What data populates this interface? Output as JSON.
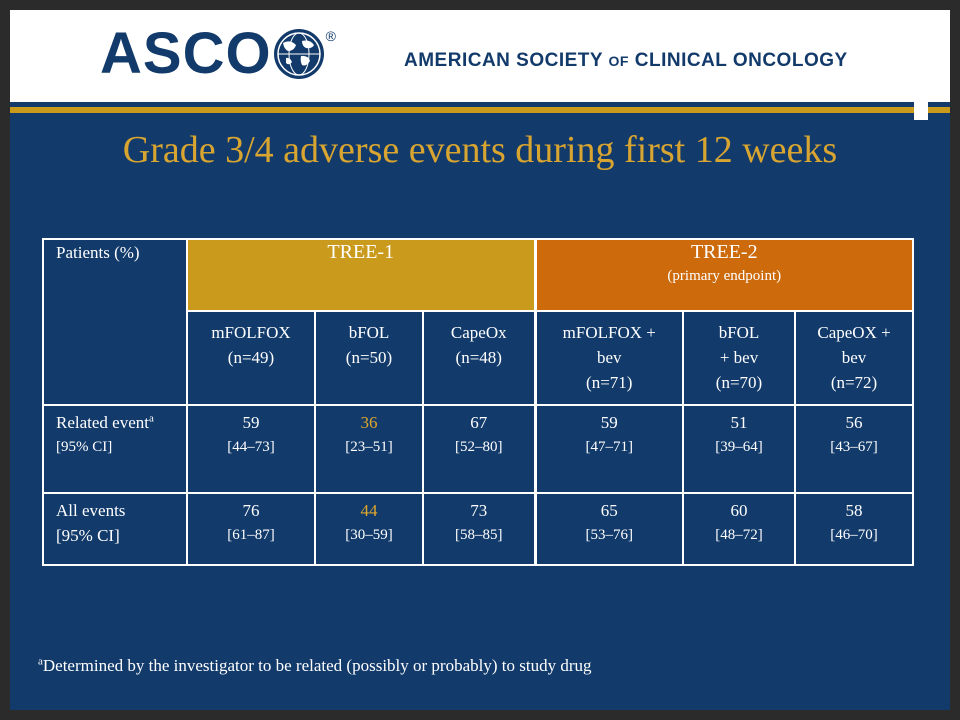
{
  "header": {
    "logo_text": "ASCO",
    "registered_mark": "®",
    "org_name_part1": "AMERICAN SOCIETY",
    "org_name_of": "OF",
    "org_name_part2": "CLINICAL ONCOLOGY"
  },
  "colors": {
    "background": "#123a6a",
    "title": "#d9a531",
    "tree1": "#c99a1c",
    "tree2": "#cc6a0c",
    "highlight": "#e0a82c"
  },
  "title": "Grade 3/4 adverse events during first 12 weeks",
  "table": {
    "corner": "Patients (%)",
    "tree1": {
      "label": "TREE-1"
    },
    "tree2": {
      "label": "TREE-2",
      "sub": "(primary endpoint)"
    },
    "arms": [
      {
        "name": "mFOLFOX",
        "n": "(n=49)"
      },
      {
        "name": "bFOL",
        "n": "(n=50)"
      },
      {
        "name": "CapeOx",
        "n": "(n=48)"
      },
      {
        "name": "mFOLFOX + bev",
        "n": "(n=71)"
      },
      {
        "name": "bFOL + bev",
        "n": "(n=70)"
      },
      {
        "name": "CapeOX + bev",
        "n": "(n=72)"
      }
    ],
    "rows": [
      {
        "label1": "Related event",
        "label_sup": "a",
        "label2": "[95% CI]",
        "cells": [
          {
            "value": "59",
            "ci": "[44–73]"
          },
          {
            "value": "36",
            "ci": "[23–51]"
          },
          {
            "value": "67",
            "ci": "[52–80]"
          },
          {
            "value": "59",
            "ci": "[47–71]"
          },
          {
            "value": "51",
            "ci": "[39–64]"
          },
          {
            "value": "56",
            "ci": "[43–67]"
          }
        ]
      },
      {
        "label1": "All events",
        "label2": "[95% CI]",
        "cells": [
          {
            "value": "76",
            "ci": "[61–87]"
          },
          {
            "value": "44",
            "ci": "[30–59]"
          },
          {
            "value": "73",
            "ci": "[58–85]"
          },
          {
            "value": "65",
            "ci": "[53–76]"
          },
          {
            "value": "60",
            "ci": "[48–72]"
          },
          {
            "value": "58",
            "ci": "[46–70]"
          }
        ]
      }
    ]
  },
  "footnote": {
    "sup": "a",
    "text": "Determined by the investigator to be related (possibly or probably) to study drug"
  }
}
